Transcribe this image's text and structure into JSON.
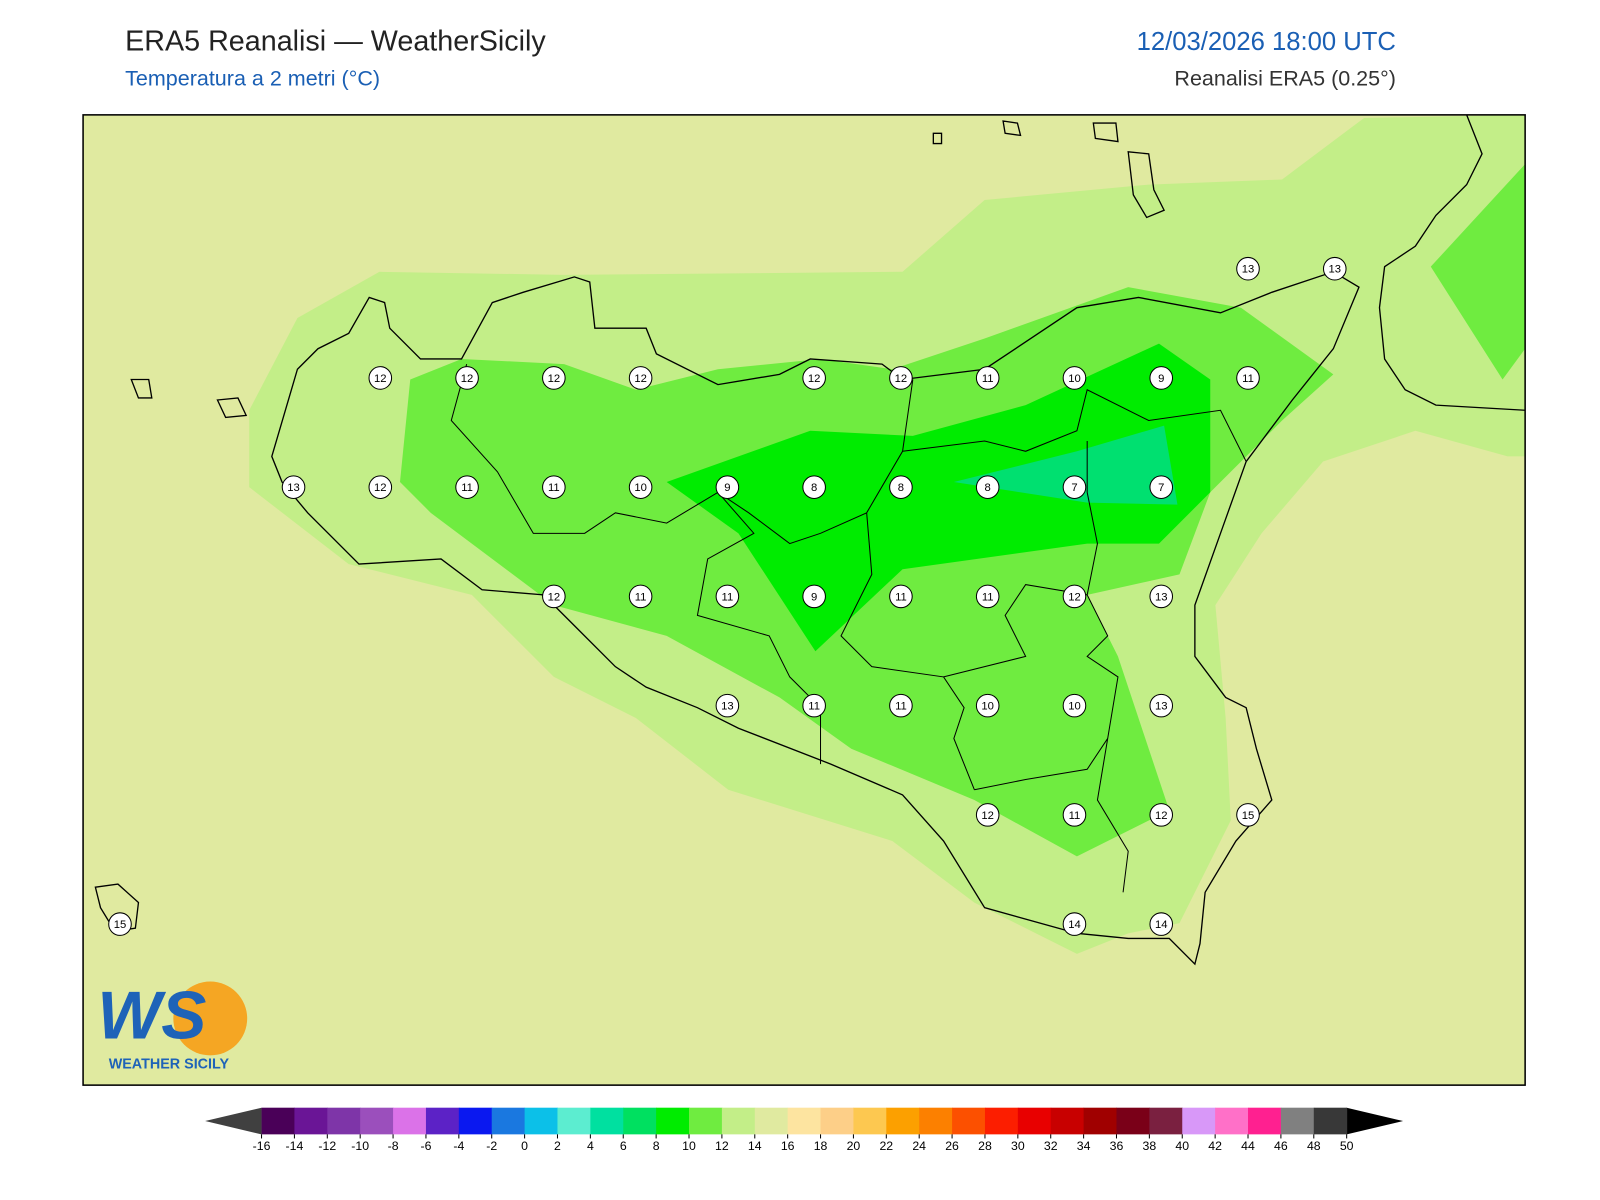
{
  "header": {
    "title": "ERA5 Reanalisi — WeatherSicily",
    "subtitle": "Temperatura a 2 metri (°C)",
    "datetime": "12/03/2026 18:00 UTC",
    "source": "Reanalisi ERA5 (0.25°)"
  },
  "map": {
    "grid": [
      [
        null,
        null,
        null,
        null,
        null,
        null,
        null,
        null,
        null,
        null,
        null,
        null,
        null,
        13,
        13
      ],
      [
        null,
        null,
        null,
        12,
        12,
        12,
        12,
        null,
        12,
        12,
        11,
        10,
        9,
        11,
        null
      ],
      [
        null,
        null,
        13,
        12,
        11,
        11,
        10,
        9,
        8,
        8,
        8,
        7,
        7,
        null,
        null
      ],
      [
        null,
        null,
        null,
        null,
        null,
        12,
        11,
        11,
        9,
        11,
        11,
        12,
        13,
        null,
        null
      ],
      [
        null,
        null,
        null,
        null,
        null,
        null,
        null,
        13,
        11,
        11,
        10,
        10,
        13,
        null,
        null
      ],
      [
        null,
        null,
        null,
        null,
        null,
        null,
        null,
        null,
        null,
        null,
        12,
        11,
        12,
        15,
        null
      ],
      [
        15,
        null,
        null,
        null,
        null,
        null,
        null,
        null,
        null,
        null,
        null,
        14,
        14,
        null,
        null
      ]
    ]
  },
  "colorbar": {
    "ticks": [
      -16,
      -14,
      -12,
      -10,
      -8,
      -6,
      -4,
      -2,
      0,
      2,
      4,
      6,
      8,
      10,
      12,
      14,
      16,
      18,
      20,
      22,
      24,
      26,
      28,
      30,
      32,
      34,
      36,
      38,
      40,
      42,
      44,
      46,
      48,
      50
    ],
    "colors": [
      "#4a0058",
      "#6a1596",
      "#7e35a8",
      "#9b4fbc",
      "#db72e8",
      "#5c22c6",
      "#0a18f0",
      "#1a78e0",
      "#0cc0e8",
      "#5cedd0",
      "#00e0a0",
      "#00e060",
      "#00ec00",
      "#6fec40",
      "#c3ee88",
      "#e0eaa0",
      "#fde4a0",
      "#fdcf88",
      "#fdc850",
      "#fca000",
      "#fc8000",
      "#fc5000",
      "#fc1e00",
      "#e80000",
      "#c80000",
      "#a00000",
      "#7a0018",
      "#7a2040",
      "#d898f8",
      "#ff70c8",
      "#ff2090",
      "#808080",
      "#383838"
    ],
    "under_color": "#404040",
    "over_color": "#000000"
  },
  "logo": {
    "mark": "WS",
    "text": "WEATHER SICILY"
  }
}
